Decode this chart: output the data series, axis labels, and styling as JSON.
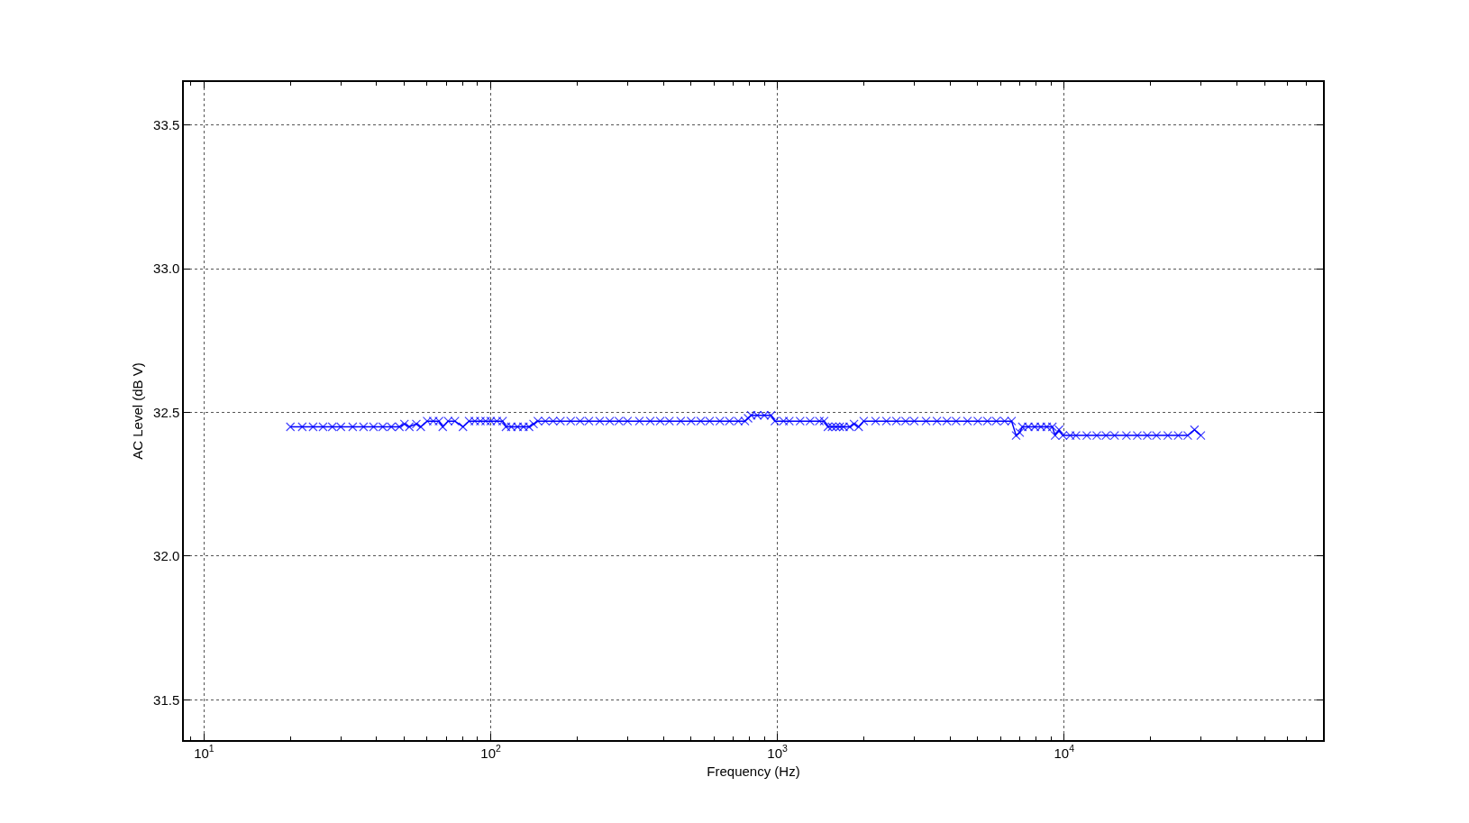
{
  "chart_data": {
    "type": "line",
    "xlabel": "Frequency (Hz)",
    "ylabel": "AC Level (dB V)",
    "log": "x",
    "grid": true,
    "marker": "cross",
    "line_style": "solid",
    "xlim": [
      8.5,
      80000
    ],
    "ylim": [
      31.36,
      33.65
    ],
    "xticks": [
      {
        "value": 10,
        "label": "10$^{1}$"
      },
      {
        "value": 100,
        "label": "10$^{2}$"
      },
      {
        "value": 1000,
        "label": "10$^{3}$"
      },
      {
        "value": 10000,
        "label": "10$^{4}$"
      },
      {
        "value": 9,
        "label": null
      },
      {
        "value": 20,
        "label": null
      },
      {
        "value": 30,
        "label": null
      },
      {
        "value": 40,
        "label": null
      },
      {
        "value": 50,
        "label": null
      },
      {
        "value": 60,
        "label": null
      },
      {
        "value": 70,
        "label": null
      },
      {
        "value": 80,
        "label": null
      },
      {
        "value": 90,
        "label": null
      },
      {
        "value": 200,
        "label": null
      },
      {
        "value": 300,
        "label": null
      },
      {
        "value": 400,
        "label": null
      },
      {
        "value": 500,
        "label": null
      },
      {
        "value": 600,
        "label": null
      },
      {
        "value": 700,
        "label": null
      },
      {
        "value": 800,
        "label": null
      },
      {
        "value": 900,
        "label": null
      },
      {
        "value": 2000,
        "label": null
      },
      {
        "value": 3000,
        "label": null
      },
      {
        "value": 4000,
        "label": null
      },
      {
        "value": 5000,
        "label": null
      },
      {
        "value": 6000,
        "label": null
      },
      {
        "value": 7000,
        "label": null
      },
      {
        "value": 8000,
        "label": null
      },
      {
        "value": 9000,
        "label": null
      },
      {
        "value": 20000,
        "label": null
      },
      {
        "value": 30000,
        "label": null
      },
      {
        "value": 40000,
        "label": null
      },
      {
        "value": 50000,
        "label": null
      },
      {
        "value": 60000,
        "label": null
      },
      {
        "value": 70000,
        "label": null
      }
    ],
    "yticks": [
      {
        "value": 31.5,
        "label": "31.5"
      },
      {
        "value": 32,
        "label": "32.0"
      },
      {
        "value": 32.5,
        "label": "32.5"
      },
      {
        "value": 33,
        "label": "33.0"
      },
      {
        "value": 33.5,
        "label": "33.5"
      }
    ],
    "series": [
      {
        "color": "#0000ff",
        "x": [
          20,
          22,
          24,
          26,
          28,
          30,
          33,
          36,
          39,
          42,
          45,
          48,
          50,
          52,
          55,
          57,
          60,
          63,
          66,
          68,
          71,
          75,
          80,
          84,
          88,
          92,
          96,
          100,
          105,
          110,
          113,
          118,
          124,
          130,
          136,
          141,
          146,
          155,
          165,
          175,
          190,
          205,
          220,
          240,
          260,
          280,
          300,
          330,
          360,
          390,
          420,
          460,
          500,
          540,
          580,
          630,
          680,
          730,
          770,
          790,
          810,
          850,
          900,
          950,
          980,
          1050,
          1100,
          1200,
          1300,
          1400,
          1455,
          1500,
          1550,
          1600,
          1650,
          1700,
          1787,
          1850,
          1920,
          2000,
          2200,
          2400,
          2600,
          2800,
          3000,
          3300,
          3600,
          3900,
          4200,
          4600,
          5000,
          5400,
          5800,
          6200,
          6560,
          6800,
          7000,
          7150,
          7500,
          7900,
          8300,
          8700,
          9100,
          9300,
          9600,
          9900,
          10500,
          11000,
          12000,
          13000,
          14000,
          15000,
          16500,
          18000,
          19500,
          21000,
          23000,
          25000,
          27000,
          28500,
          30000
        ],
        "values": [
          32.45,
          32.45,
          32.45,
          32.45,
          32.45,
          32.45,
          32.45,
          32.45,
          32.45,
          32.45,
          32.45,
          32.45,
          32.46,
          32.45,
          32.46,
          32.45,
          32.47,
          32.47,
          32.47,
          32.45,
          32.47,
          32.47,
          32.45,
          32.47,
          32.47,
          32.47,
          32.47,
          32.47,
          32.47,
          32.47,
          32.45,
          32.45,
          32.45,
          32.45,
          32.45,
          32.46,
          32.47,
          32.47,
          32.47,
          32.47,
          32.47,
          32.47,
          32.47,
          32.47,
          32.47,
          32.47,
          32.47,
          32.47,
          32.47,
          32.47,
          32.47,
          32.47,
          32.47,
          32.47,
          32.47,
          32.47,
          32.47,
          32.47,
          32.47,
          32.48,
          32.49,
          32.49,
          32.49,
          32.49,
          32.47,
          32.47,
          32.47,
          32.47,
          32.47,
          32.47,
          32.47,
          32.45,
          32.45,
          32.45,
          32.45,
          32.45,
          32.45,
          32.46,
          32.45,
          32.47,
          32.47,
          32.47,
          32.47,
          32.47,
          32.47,
          32.47,
          32.47,
          32.47,
          32.47,
          32.47,
          32.47,
          32.47,
          32.47,
          32.47,
          32.47,
          32.42,
          32.43,
          32.45,
          32.45,
          32.45,
          32.45,
          32.45,
          32.45,
          32.42,
          32.44,
          32.42,
          32.42,
          32.42,
          32.42,
          32.42,
          32.42,
          32.42,
          32.42,
          32.42,
          32.42,
          32.42,
          32.42,
          32.42,
          32.42,
          32.44,
          32.42
        ]
      }
    ]
  }
}
